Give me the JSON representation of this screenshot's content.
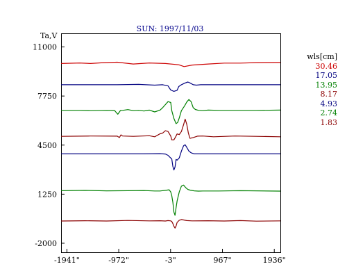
{
  "chart_data": {
    "type": "line",
    "title": "SUN: 1997/11/03",
    "ylabel": "Ta,V",
    "xlabel": "",
    "xlim": [
      -2050,
      2050
    ],
    "ylim": [
      -2600,
      11900
    ],
    "x_tick_labels": [
      {
        "value": -1941,
        "label": "-1941\""
      },
      {
        "value": -972,
        "label": "-972\""
      },
      {
        "value": -3,
        "label": "-3\""
      },
      {
        "value": 967,
        "label": "967\""
      },
      {
        "value": 1936,
        "label": "1936\""
      }
    ],
    "y_tick_labels": [
      {
        "value": 11000,
        "label": "11000"
      },
      {
        "value": 7750,
        "label": "7750"
      },
      {
        "value": 4500,
        "label": "4500"
      },
      {
        "value": 1250,
        "label": "1250"
      },
      {
        "value": -2000,
        "label": "-2000"
      }
    ],
    "grid": false,
    "legend": {
      "title": "wls[cm]",
      "placement": "right",
      "entries": [
        {
          "label": "30.46",
          "color": "#cc0000"
        },
        {
          "label": "17.05",
          "color": "#000080"
        },
        {
          "label": "13.95",
          "color": "#008000"
        },
        {
          "label": "8.17",
          "color": "#8b0000"
        },
        {
          "label": "4.93",
          "color": "#000080"
        },
        {
          "label": "2.74",
          "color": "#008000"
        },
        {
          "label": "1.83",
          "color": "#8b0000"
        }
      ]
    },
    "series": [
      {
        "name": "30.46",
        "color": "#cc0000",
        "x": [
          -2050,
          -1700,
          -1500,
          -1300,
          -1000,
          -700,
          -400,
          -100,
          150,
          250,
          400,
          700,
          1000,
          1300,
          1600,
          2050
        ],
        "y": [
          9900,
          9940,
          9900,
          9950,
          9990,
          9870,
          9940,
          9900,
          9820,
          9700,
          9800,
          9870,
          9930,
          9930,
          9960,
          9970
        ]
      },
      {
        "name": "17.05",
        "color": "#000080",
        "x": [
          -2050,
          -1000,
          -600,
          -300,
          -150,
          -50,
          0,
          60,
          120,
          150,
          200,
          260,
          320,
          360,
          420,
          480,
          560,
          700,
          1000,
          2050
        ],
        "y": [
          8500,
          8500,
          8520,
          8470,
          8500,
          8420,
          8150,
          8060,
          8130,
          8380,
          8500,
          8600,
          8680,
          8620,
          8500,
          8470,
          8500,
          8500,
          8500,
          8500
        ]
      },
      {
        "name": "13.95",
        "color": "#008000",
        "x": [
          -2050,
          -1700,
          -1500,
          -1200,
          -1050,
          -990,
          -940,
          -900,
          -800,
          -700,
          -600,
          -500,
          -400,
          -300,
          -200,
          -150,
          -100,
          -50,
          0,
          20,
          60,
          100,
          130,
          160,
          200,
          260,
          300,
          340,
          380,
          420,
          460,
          520,
          600,
          700,
          900,
          1300,
          1600,
          2050
        ],
        "y": [
          6800,
          6800,
          6780,
          6800,
          6790,
          6540,
          6790,
          6800,
          6850,
          6780,
          6800,
          6760,
          6820,
          6700,
          6820,
          6980,
          7180,
          7380,
          7320,
          6780,
          6260,
          5920,
          6000,
          6300,
          6780,
          7100,
          7350,
          7520,
          7380,
          6980,
          6860,
          6800,
          6780,
          6820,
          6800,
          6800,
          6800,
          6820
        ]
      },
      {
        "name": "8.17",
        "color": "#8b0000",
        "x": [
          -2050,
          -1500,
          -1000,
          -960,
          -930,
          -900,
          -700,
          -400,
          -300,
          -200,
          -150,
          -100,
          -50,
          0,
          20,
          60,
          90,
          120,
          160,
          200,
          240,
          270,
          300,
          330,
          360,
          420,
          500,
          600,
          800,
          1200,
          1600,
          2050
        ],
        "y": [
          5080,
          5100,
          5090,
          5000,
          5180,
          5100,
          5080,
          5120,
          5050,
          5250,
          5300,
          5450,
          5400,
          5100,
          4850,
          4850,
          5030,
          5240,
          5200,
          5400,
          5850,
          6220,
          5880,
          5300,
          4950,
          5000,
          5090,
          5100,
          5050,
          5100,
          5080,
          5050
        ]
      },
      {
        "name": "4.93",
        "color": "#000080",
        "x": [
          -2050,
          -1500,
          -1000,
          -500,
          -200,
          -100,
          -50,
          -10,
          20,
          40,
          60,
          80,
          100,
          120,
          160,
          200,
          240,
          270,
          300,
          340,
          380,
          440,
          500,
          700,
          1200,
          2050
        ],
        "y": [
          3920,
          3920,
          3920,
          3920,
          3930,
          3910,
          3820,
          3680,
          3580,
          3080,
          2850,
          3050,
          3550,
          3500,
          3650,
          4100,
          4450,
          4520,
          4350,
          4100,
          3990,
          3920,
          3920,
          3920,
          3920,
          3920
        ]
      },
      {
        "name": "2.74",
        "color": "#008000",
        "x": [
          -2050,
          -1600,
          -1200,
          -800,
          -500,
          -300,
          -200,
          -100,
          -30,
          0,
          20,
          40,
          60,
          80,
          100,
          120,
          160,
          200,
          240,
          280,
          320,
          360,
          440,
          520,
          600,
          900,
          1300,
          2050
        ],
        "y": [
          1480,
          1500,
          1470,
          1480,
          1490,
          1460,
          1460,
          1500,
          1540,
          1400,
          1150,
          700,
          60,
          -150,
          350,
          800,
          1400,
          1780,
          1850,
          1680,
          1560,
          1520,
          1470,
          1450,
          1460,
          1460,
          1480,
          1450
        ]
      },
      {
        "name": "1.83",
        "color": "#8b0000",
        "x": [
          -2050,
          -1600,
          -1200,
          -800,
          -400,
          -200,
          -100,
          -50,
          0,
          20,
          40,
          60,
          80,
          100,
          120,
          160,
          200,
          300,
          400,
          700,
          1000,
          1300,
          1600,
          2050
        ],
        "y": [
          -530,
          -510,
          -530,
          -490,
          -520,
          -510,
          -530,
          -500,
          -520,
          -560,
          -700,
          -880,
          -1000,
          -860,
          -620,
          -480,
          -430,
          -500,
          -520,
          -510,
          -530,
          -500,
          -540,
          -520
        ]
      }
    ]
  }
}
